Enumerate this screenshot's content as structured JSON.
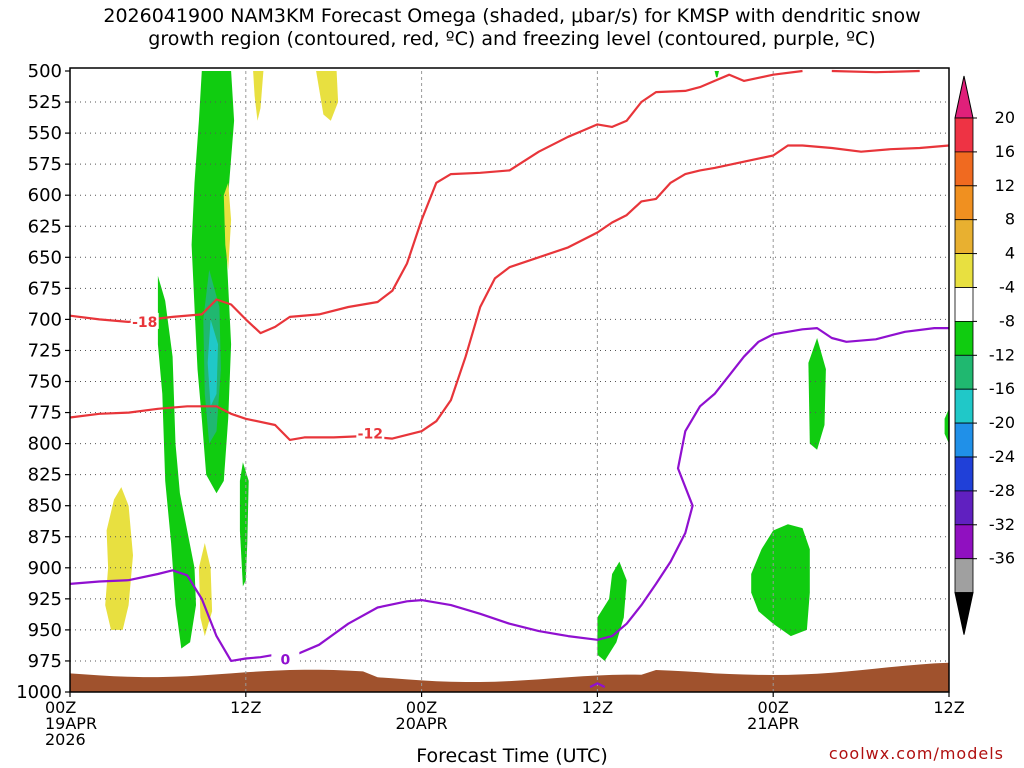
{
  "chart_data": {
    "type": "time-height",
    "title_line1": "2026041900 NAM3KM Forecast Omega (shaded, μbar/s) for KMSP with dendritic snow",
    "title_line2": "growth region (contoured, red, ºC) and freezing level (contoured, purple, ºC)",
    "xlabel": "Forecast Time (UTC)",
    "y_ticks": [
      "500",
      "525",
      "550",
      "575",
      "600",
      "625",
      "650",
      "675",
      "700",
      "725",
      "750",
      "775",
      "800",
      "825",
      "850",
      "875",
      "900",
      "925",
      "950",
      "975",
      "1000"
    ],
    "y_values": [
      500,
      525,
      550,
      575,
      600,
      625,
      650,
      675,
      700,
      725,
      750,
      775,
      800,
      825,
      850,
      875,
      900,
      925,
      950,
      975,
      1000
    ],
    "x_range_hours": [
      0,
      60
    ],
    "x_ticks": [
      {
        "hour": 0,
        "lines": [
          "00Z",
          "19APR",
          "2026"
        ]
      },
      {
        "hour": 12,
        "lines": [
          "12Z"
        ]
      },
      {
        "hour": 24,
        "lines": [
          "00Z",
          "20APR"
        ]
      },
      {
        "hour": 36,
        "lines": [
          "12Z"
        ]
      },
      {
        "hour": 48,
        "lines": [
          "00Z",
          "21APR"
        ]
      },
      {
        "hour": 60,
        "lines": [
          "12Z"
        ]
      }
    ],
    "colorbar": {
      "labels": [
        "20",
        "16",
        "12",
        "8",
        "4",
        "-4",
        "-8",
        "-12",
        "-16",
        "-20",
        "-24",
        "-28",
        "-32",
        "-36"
      ],
      "colors": [
        "#ee3344",
        "#f06a20",
        "#f09020",
        "#e8b030",
        "#e8e040",
        "#ffffff",
        "#10cc10",
        "#20b870",
        "#20c8c8",
        "#2090e8",
        "#2040d8",
        "#6020c0",
        "#9010c0",
        "#a0a0a0"
      ],
      "top_triangle_color": "#e0207a",
      "bottom_triangle_color": "#000000"
    },
    "contour_labels": {
      "red_upper": "-18",
      "red_lower": "-12",
      "purple": "0"
    },
    "series": [
      {
        "name": "-18C isotherm (upper)",
        "color": "#e8353a",
        "points": [
          [
            0,
            697
          ],
          [
            2,
            700
          ],
          [
            4,
            702
          ],
          [
            7,
            698
          ],
          [
            9,
            696
          ],
          [
            10,
            684
          ],
          [
            11,
            688
          ],
          [
            12,
            700
          ],
          [
            13,
            711
          ],
          [
            14,
            706
          ],
          [
            15,
            698
          ],
          [
            17,
            696
          ],
          [
            19,
            690
          ],
          [
            21,
            686
          ],
          [
            22,
            677
          ],
          [
            23,
            655
          ],
          [
            24,
            620
          ],
          [
            25,
            590
          ],
          [
            26,
            583
          ],
          [
            28,
            582
          ],
          [
            30,
            580
          ],
          [
            32,
            565
          ],
          [
            34,
            553
          ],
          [
            35,
            548
          ],
          [
            36,
            543
          ],
          [
            37,
            545
          ],
          [
            38,
            540
          ],
          [
            39,
            525
          ],
          [
            40,
            517
          ],
          [
            42,
            516
          ],
          [
            43,
            513
          ],
          [
            44,
            508
          ],
          [
            45,
            503
          ],
          [
            46,
            508
          ],
          [
            48,
            503
          ],
          [
            50,
            500
          ]
        ]
      },
      {
        "name": "-12C isotherm (lower)",
        "color": "#e8353a",
        "points": [
          [
            0,
            779
          ],
          [
            2,
            776
          ],
          [
            4,
            775
          ],
          [
            6,
            772
          ],
          [
            8,
            770
          ],
          [
            10,
            770
          ],
          [
            11,
            776
          ],
          [
            12,
            780
          ],
          [
            14,
            785
          ],
          [
            15,
            797
          ],
          [
            16,
            795
          ],
          [
            18,
            795
          ],
          [
            20,
            794
          ],
          [
            22,
            796
          ],
          [
            24,
            790
          ],
          [
            25,
            782
          ],
          [
            26,
            765
          ],
          [
            27,
            730
          ],
          [
            28,
            690
          ],
          [
            29,
            667
          ],
          [
            30,
            658
          ],
          [
            32,
            650
          ],
          [
            34,
            642
          ],
          [
            36,
            630
          ],
          [
            37,
            622
          ],
          [
            38,
            616
          ],
          [
            39,
            605
          ],
          [
            40,
            603
          ],
          [
            41,
            590
          ],
          [
            42,
            583
          ],
          [
            43,
            580
          ],
          [
            44,
            578
          ],
          [
            46,
            573
          ],
          [
            48,
            568
          ],
          [
            49,
            560
          ],
          [
            50,
            560
          ],
          [
            52,
            562
          ],
          [
            54,
            565
          ],
          [
            56,
            563
          ],
          [
            58,
            562
          ],
          [
            60,
            560
          ]
        ]
      },
      {
        "name": "0C freezing level",
        "color": "#9010d0",
        "points": [
          [
            0,
            913
          ],
          [
            2,
            911
          ],
          [
            4,
            910
          ],
          [
            6,
            905
          ],
          [
            7,
            902
          ],
          [
            8,
            906
          ],
          [
            9,
            925
          ],
          [
            10,
            955
          ],
          [
            11,
            975
          ],
          [
            12,
            973
          ],
          [
            13,
            972
          ],
          [
            14,
            970
          ],
          [
            15,
            972
          ],
          [
            17,
            962
          ],
          [
            19,
            945
          ],
          [
            21,
            932
          ],
          [
            23,
            927
          ],
          [
            24,
            926
          ],
          [
            26,
            930
          ],
          [
            28,
            937
          ],
          [
            30,
            945
          ],
          [
            32,
            951
          ],
          [
            34,
            955
          ],
          [
            36,
            958
          ],
          [
            37,
            955
          ],
          [
            38,
            945
          ],
          [
            39,
            930
          ],
          [
            40,
            913
          ],
          [
            41,
            895
          ],
          [
            42,
            872
          ],
          [
            42.5,
            850
          ],
          [
            41.5,
            820
          ],
          [
            42,
            790
          ],
          [
            43,
            770
          ],
          [
            44,
            760
          ],
          [
            45,
            745
          ],
          [
            46,
            730
          ],
          [
            47,
            718
          ],
          [
            48,
            712
          ],
          [
            50,
            708
          ],
          [
            51,
            707
          ],
          [
            52,
            715
          ],
          [
            53,
            718
          ],
          [
            55,
            716
          ],
          [
            57,
            710
          ],
          [
            59,
            707
          ],
          [
            60,
            707
          ]
        ]
      }
    ],
    "shaded_regions": [
      {
        "name": "omega -4 green upper column",
        "color": "#10cc10",
        "points": [
          [
            9.0,
            500
          ],
          [
            11.0,
            500
          ],
          [
            11.2,
            540
          ],
          [
            10.8,
            600
          ],
          [
            10.7,
            650
          ],
          [
            11.0,
            720
          ],
          [
            10.8,
            780
          ],
          [
            10.5,
            830
          ],
          [
            10.0,
            840
          ],
          [
            9.3,
            825
          ],
          [
            9.0,
            780
          ],
          [
            8.7,
            740
          ],
          [
            8.5,
            690
          ],
          [
            8.3,
            640
          ],
          [
            8.5,
            590
          ],
          [
            8.8,
            540
          ]
        ]
      },
      {
        "name": "omega -4 green lower column",
        "color": "#10cc10",
        "points": [
          [
            6.0,
            665
          ],
          [
            6.5,
            685
          ],
          [
            7.0,
            730
          ],
          [
            7.2,
            800
          ],
          [
            7.5,
            840
          ],
          [
            8.0,
            870
          ],
          [
            8.5,
            900
          ],
          [
            8.6,
            930
          ],
          [
            8.2,
            960
          ],
          [
            7.6,
            965
          ],
          [
            7.2,
            930
          ],
          [
            6.9,
            880
          ],
          [
            6.5,
            830
          ],
          [
            6.3,
            760
          ],
          [
            6.0,
            720
          ]
        ]
      },
      {
        "name": "omega -4 green small column 12Z",
        "color": "#10cc10",
        "points": [
          [
            11.8,
            815
          ],
          [
            12.2,
            830
          ],
          [
            12.1,
            880
          ],
          [
            12.0,
            910
          ],
          [
            11.8,
            915
          ],
          [
            11.6,
            870
          ],
          [
            11.6,
            830
          ]
        ]
      },
      {
        "name": "omega -8 teal core",
        "color": "#20b870",
        "points": [
          [
            9.5,
            660
          ],
          [
            10.2,
            690
          ],
          [
            10.3,
            740
          ],
          [
            10.0,
            790
          ],
          [
            9.5,
            800
          ],
          [
            9.2,
            760
          ],
          [
            9.1,
            700
          ]
        ]
      },
      {
        "name": "omega -12 cyan core",
        "color": "#20c8c8",
        "points": [
          [
            9.6,
            700
          ],
          [
            10.1,
            720
          ],
          [
            10.0,
            760
          ],
          [
            9.6,
            770
          ],
          [
            9.4,
            735
          ]
        ]
      },
      {
        "name": "omega -4 green 12Z 20APR",
        "color": "#10cc10",
        "points": [
          [
            36.0,
            940
          ],
          [
            36.8,
            925
          ],
          [
            37.0,
            905
          ],
          [
            37.5,
            895
          ],
          [
            38.0,
            910
          ],
          [
            37.8,
            940
          ],
          [
            37.3,
            960
          ],
          [
            36.5,
            975
          ],
          [
            36.0,
            970
          ]
        ]
      },
      {
        "name": "omega -4 green near 17Z",
        "color": "#10cc10",
        "points": [
          [
            44.0,
            500
          ],
          [
            44.3,
            500
          ],
          [
            44.2,
            505
          ],
          [
            44.1,
            505
          ]
        ]
      },
      {
        "name": "omega -4 green 02Z 21APR column",
        "color": "#10cc10",
        "points": [
          [
            50.4,
            735
          ],
          [
            51.0,
            715
          ],
          [
            51.6,
            740
          ],
          [
            51.5,
            785
          ],
          [
            51.0,
            805
          ],
          [
            50.5,
            800
          ]
        ]
      },
      {
        "name": "omega -4 green 00Z 21APR blob",
        "color": "#10cc10",
        "points": [
          [
            46.5,
            905
          ],
          [
            47.2,
            885
          ],
          [
            48.0,
            870
          ],
          [
            49.0,
            865
          ],
          [
            50.0,
            868
          ],
          [
            50.5,
            885
          ],
          [
            50.5,
            920
          ],
          [
            50.3,
            950
          ],
          [
            49.2,
            955
          ],
          [
            48.0,
            945
          ],
          [
            47.0,
            935
          ],
          [
            46.5,
            920
          ]
        ]
      },
      {
        "name": "omega -4 green right edge",
        "color": "#10cc10",
        "points": [
          [
            59.7,
            780
          ],
          [
            60,
            772
          ],
          [
            60,
            800
          ],
          [
            59.7,
            792
          ]
        ]
      },
      {
        "name": "omega +4 yellow 00-06Z low",
        "color": "#e8e040",
        "points": [
          [
            2.5,
            870
          ],
          [
            3.0,
            845
          ],
          [
            3.5,
            835
          ],
          [
            4.0,
            850
          ],
          [
            4.3,
            890
          ],
          [
            4.0,
            930
          ],
          [
            3.6,
            950
          ],
          [
            2.8,
            950
          ],
          [
            2.4,
            930
          ],
          [
            2.6,
            900
          ]
        ]
      },
      {
        "name": "omega +4 yellow 10Z low",
        "color": "#e8e040",
        "points": [
          [
            8.8,
            900
          ],
          [
            9.2,
            880
          ],
          [
            9.6,
            900
          ],
          [
            9.7,
            935
          ],
          [
            9.2,
            955
          ],
          [
            8.9,
            940
          ]
        ]
      },
      {
        "name": "omega +4 yellow 11Z mid",
        "color": "#e8e040",
        "points": [
          [
            10.5,
            600
          ],
          [
            10.8,
            590
          ],
          [
            11.0,
            620
          ],
          [
            10.8,
            660
          ],
          [
            10.6,
            640
          ]
        ]
      },
      {
        "name": "omega +4 yellow 13Z top",
        "color": "#e8e040",
        "points": [
          [
            12.5,
            500
          ],
          [
            13.2,
            500
          ],
          [
            13.0,
            530
          ],
          [
            12.8,
            540
          ],
          [
            12.6,
            520
          ]
        ]
      },
      {
        "name": "omega +4 yellow 17Z top",
        "color": "#e8e040",
        "points": [
          [
            16.8,
            500
          ],
          [
            18.2,
            500
          ],
          [
            18.3,
            525
          ],
          [
            17.8,
            540
          ],
          [
            17.3,
            535
          ]
        ]
      }
    ],
    "terrain": {
      "color": "#a0522d",
      "description": "surface below ground near 1000 mb"
    }
  },
  "labels": {
    "footer": "coolwx.com/models"
  }
}
